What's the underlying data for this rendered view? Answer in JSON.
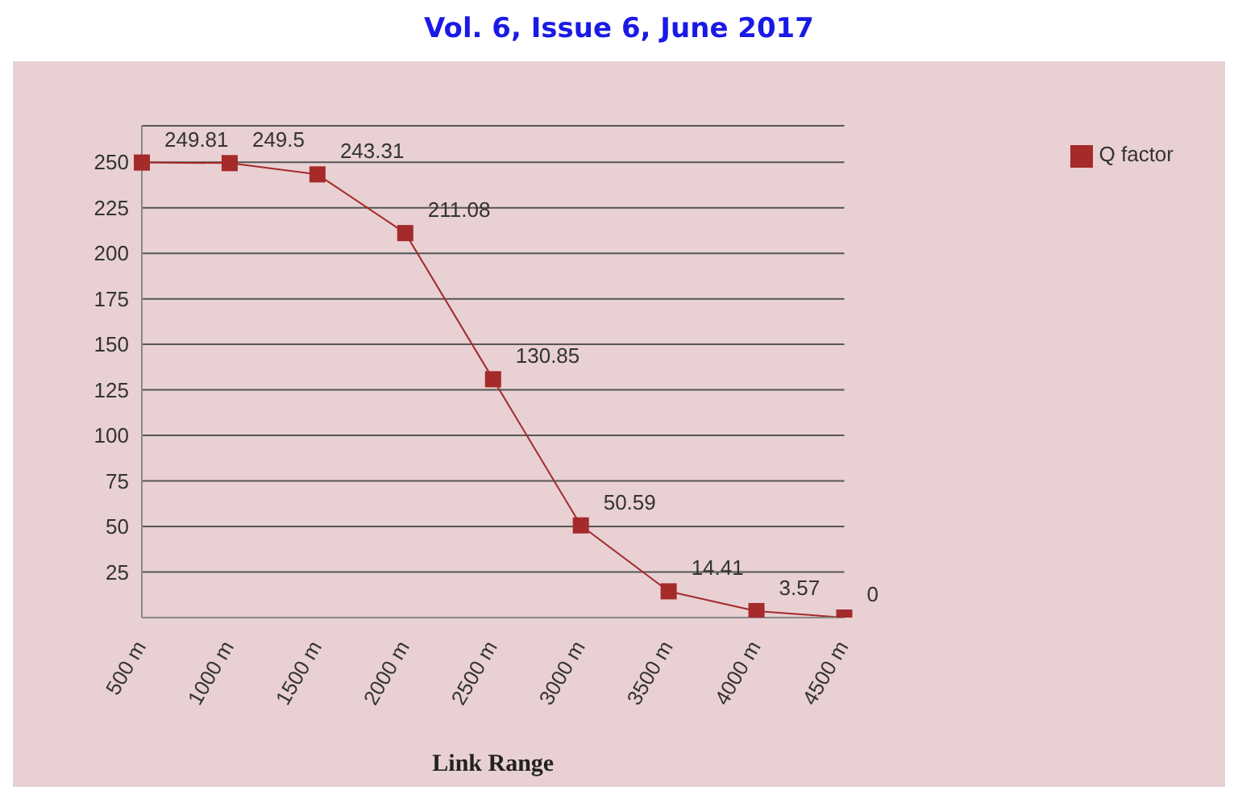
{
  "chart_data": {
    "type": "line",
    "xlabel": "Link Range",
    "annotations": [
      "Vol. 6, Issue 6, June 2017"
    ],
    "categories": [
      "500 m",
      "1000 m",
      "1500 m",
      "2000 m",
      "2500 m",
      "3000 m",
      "3500 m",
      "4000 m",
      "4500 m"
    ],
    "series": [
      {
        "name": "Q factor",
        "color": "#a52a2a",
        "values": [
          249.81,
          249.5,
          243.31,
          211.08,
          130.85,
          50.59,
          14.41,
          3.57,
          0
        ]
      }
    ],
    "ylim": [
      0,
      270
    ],
    "yticks": [
      25,
      50,
      75,
      100,
      125,
      150,
      175,
      200,
      225,
      250
    ],
    "grid": "y",
    "legend": "top right",
    "marker": "square",
    "data_labels": true
  }
}
